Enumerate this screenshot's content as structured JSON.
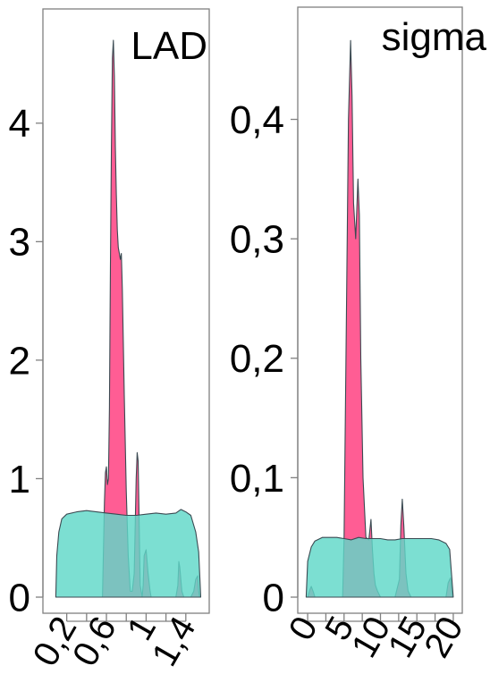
{
  "chart_data": [
    {
      "type": "area",
      "title": "LAD",
      "xlabel": "",
      "ylabel": "",
      "xlim": [
        0.05,
        1.6
      ],
      "ylim": [
        0,
        4.7
      ],
      "x_ticks": [
        0.2,
        0.4,
        0.6,
        0.8,
        1.0,
        1.2,
        1.4
      ],
      "x_tick_labels": [
        "0,2",
        "0,6",
        "1",
        "1,4"
      ],
      "x_tick_label_values": [
        0.2,
        0.6,
        1.0,
        1.4
      ],
      "y_ticks": [
        0,
        1,
        2,
        3,
        4
      ],
      "y_tick_labels": [
        "0",
        "1",
        "2",
        "3",
        "4"
      ],
      "series": [
        {
          "color": "#ff4f8b",
          "x": [
            0.56,
            0.58,
            0.59,
            0.6,
            0.61,
            0.62,
            0.63,
            0.64,
            0.65,
            0.66,
            0.67,
            0.68,
            0.69,
            0.7,
            0.71,
            0.72,
            0.73,
            0.74,
            0.75,
            0.76,
            0.78,
            0.8,
            0.82,
            0.84,
            0.86,
            0.88,
            0.9,
            0.91,
            0.92,
            0.93,
            0.94,
            0.95,
            0.96,
            0.97,
            0.98,
            1.0,
            1.02,
            1.04,
            1.05,
            1.06,
            1.08,
            1.1,
            1.12,
            1.15,
            1.2,
            1.25,
            1.3,
            1.32,
            1.33,
            1.34,
            1.36,
            1.38,
            1.4,
            1.45,
            1.48,
            1.5,
            1.52,
            1.53,
            1.54
          ],
          "y": [
            0,
            0.8,
            1.05,
            1.1,
            0.95,
            1.0,
            1.6,
            2.8,
            3.8,
            4.55,
            4.7,
            4.4,
            3.8,
            3.4,
            3.1,
            2.95,
            2.9,
            2.85,
            2.9,
            2.6,
            1.7,
            0.9,
            0.35,
            0.05,
            0.05,
            0.2,
            1.0,
            1.22,
            1.15,
            0.6,
            0.1,
            0.05,
            0.0,
            0.1,
            0.35,
            0.4,
            0.2,
            0.05,
            0.0,
            0.0,
            0.0,
            0.0,
            0.0,
            0.0,
            0.0,
            0.0,
            0.0,
            0.1,
            0.3,
            0.25,
            0.05,
            0.0,
            0.0,
            0.0,
            0.05,
            0.15,
            0.18,
            0.05,
            0.0
          ]
        },
        {
          "color": "#5fd8c8",
          "x": [
            0.09,
            0.1,
            0.12,
            0.15,
            0.2,
            0.3,
            0.4,
            0.5,
            0.6,
            0.7,
            0.8,
            0.9,
            1.0,
            1.1,
            1.2,
            1.3,
            1.35,
            1.4,
            1.45,
            1.5,
            1.53,
            1.55
          ],
          "y": [
            0.0,
            0.35,
            0.55,
            0.66,
            0.7,
            0.72,
            0.73,
            0.72,
            0.71,
            0.7,
            0.69,
            0.69,
            0.7,
            0.71,
            0.7,
            0.71,
            0.74,
            0.72,
            0.69,
            0.55,
            0.38,
            0.0
          ]
        }
      ]
    },
    {
      "type": "area",
      "title": "sigma",
      "xlabel": "",
      "ylabel": "",
      "xlim": [
        -0.5,
        20.5
      ],
      "ylim": [
        0,
        0.47
      ],
      "x_ticks": [
        0,
        2.5,
        5,
        7.5,
        10,
        12.5,
        15,
        17.5,
        20
      ],
      "x_tick_labels": [
        "0",
        "5",
        "10",
        "15",
        "20"
      ],
      "x_tick_label_values": [
        0,
        5,
        10,
        15,
        20
      ],
      "y_ticks": [
        0,
        0.1,
        0.2,
        0.3,
        0.4
      ],
      "y_tick_labels": [
        "0",
        "0,1",
        "0,2",
        "0,3",
        "0,4"
      ],
      "series": [
        {
          "color": "#ff4f8b",
          "x": [
            0,
            0.3,
            0.5,
            0.8,
            1.0,
            4.8,
            5.0,
            5.3,
            5.6,
            5.9,
            6.1,
            6.3,
            6.6,
            6.9,
            7.1,
            7.3,
            7.6,
            8.0,
            8.4,
            8.7,
            8.9,
            9.1,
            9.3,
            9.6,
            10.0,
            10.3,
            10.6,
            11.0,
            12.0,
            12.6,
            12.8,
            13.0,
            13.2,
            13.5,
            13.8,
            14.2,
            17.0,
            19.0,
            19.3,
            19.6,
            19.9
          ],
          "y": [
            0,
            0.006,
            0.009,
            0.004,
            0.0,
            0.0,
            0.05,
            0.22,
            0.4,
            0.466,
            0.42,
            0.33,
            0.3,
            0.35,
            0.32,
            0.2,
            0.1,
            0.05,
            0.048,
            0.065,
            0.04,
            0.02,
            0.01,
            0.005,
            0.0,
            0.0,
            0.0,
            0.0,
            0.0,
            0.015,
            0.06,
            0.082,
            0.06,
            0.02,
            0.005,
            0.0,
            0.0,
            0.0,
            0.012,
            0.016,
            0.0
          ]
        },
        {
          "color": "#5fd8c8",
          "x": [
            -0.2,
            0,
            0.5,
            1,
            2,
            3,
            4,
            5,
            6,
            7,
            8,
            9,
            10,
            11,
            12,
            13,
            14,
            15,
            16,
            17,
            18,
            19,
            19.5,
            20
          ],
          "y": [
            0.0,
            0.03,
            0.042,
            0.047,
            0.05,
            0.05,
            0.05,
            0.049,
            0.048,
            0.05,
            0.049,
            0.049,
            0.049,
            0.048,
            0.048,
            0.049,
            0.049,
            0.049,
            0.049,
            0.049,
            0.048,
            0.045,
            0.04,
            0.0
          ]
        }
      ]
    }
  ]
}
